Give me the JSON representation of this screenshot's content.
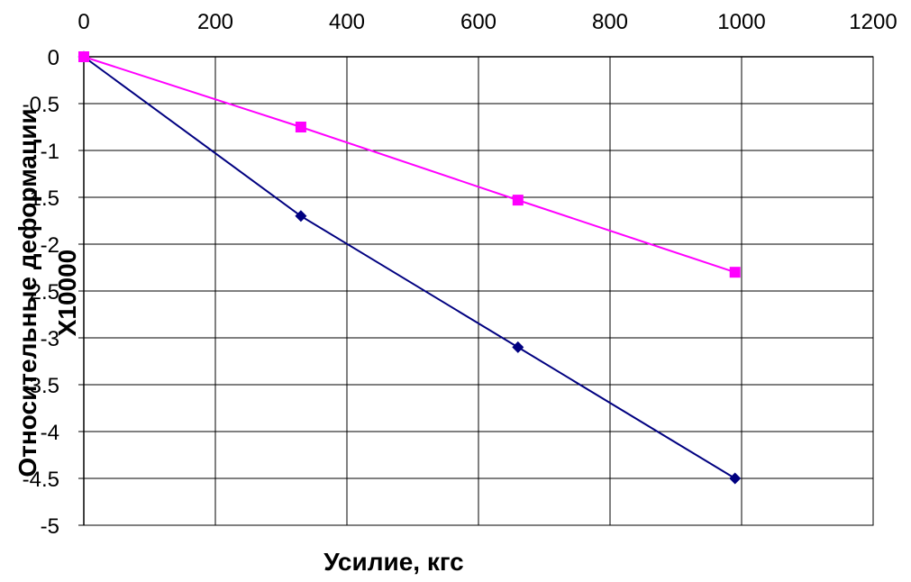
{
  "chart_data": {
    "type": "line",
    "title": "",
    "xlabel": "Усилие, кгс",
    "ylabel_lines": [
      "Относительные деформации",
      "X10000"
    ],
    "xlim": [
      0,
      1200
    ],
    "ylim": [
      -5,
      0
    ],
    "x_ticks": [
      0,
      200,
      400,
      600,
      800,
      1000,
      1200
    ],
    "x_tick_labels": [
      "0",
      "200",
      "400",
      "600",
      "800",
      "1000",
      "1200"
    ],
    "y_ticks": [
      0,
      -0.5,
      -1,
      -1.5,
      -2,
      -2.5,
      -3,
      -3.5,
      -4,
      -4.5,
      -5
    ],
    "y_tick_labels": [
      "0",
      "-0.5",
      "-1",
      "-1.5",
      "-2",
      "-2.5",
      "-3",
      "-3.5",
      "-4",
      "-4.5",
      "-5"
    ],
    "x_axis_position": "top",
    "grid": true,
    "legend": "none",
    "series": [
      {
        "color": "#000080",
        "marker": "diamond",
        "x": [
          0,
          330,
          660,
          990
        ],
        "y": [
          0,
          -1.7,
          -3.1,
          -4.5
        ]
      },
      {
        "color": "#FF00FF",
        "marker": "square",
        "x": [
          0,
          330,
          660,
          990
        ],
        "y": [
          0,
          -0.75,
          -1.53,
          -2.3
        ]
      }
    ]
  }
}
